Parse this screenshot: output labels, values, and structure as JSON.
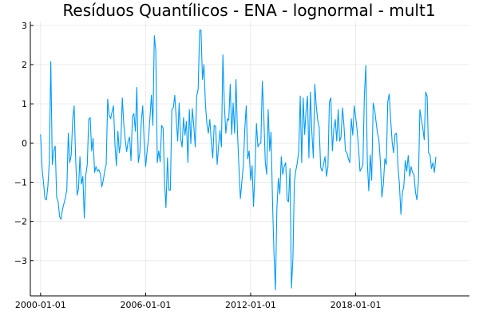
{
  "colors": {
    "series": "#009AFA",
    "background": "#FFFFFF",
    "axis": "#000000"
  },
  "chart_data": {
    "type": "line",
    "title": "Resíduos Quantílicos - ENA - lognormal - mult1",
    "xlabel": "",
    "ylabel": "",
    "grid": true,
    "legend": "none",
    "x_axis": {
      "type": "date",
      "start": "2000-01-01",
      "step": "1 month",
      "range": [
        "1999-06-01",
        "2024-07-01"
      ],
      "ticks": [
        "2000-01-01",
        "2006-01-01",
        "2012-01-01",
        "2018-01-01"
      ]
    },
    "y_axis": {
      "range": [
        -3.9,
        3.1
      ],
      "ticks": [
        -3,
        -2,
        -1,
        0,
        1,
        2,
        3
      ],
      "tick_labels": [
        "−3",
        "−2",
        "−1",
        "0",
        "1",
        "2",
        "3"
      ]
    },
    "series": [
      {
        "values": [
          0.22,
          -0.65,
          -1.0,
          -1.42,
          -1.45,
          -1.1,
          -0.48,
          2.08,
          -0.55,
          -0.2,
          -0.08,
          -1.38,
          -1.5,
          -1.88,
          -1.95,
          -1.7,
          -1.55,
          -1.4,
          -1.2,
          0.25,
          -0.5,
          -0.3,
          0.6,
          0.95,
          -0.38,
          -1.33,
          -1.18,
          -0.35,
          -1.05,
          -0.85,
          -1.92,
          -0.82,
          -0.55,
          0.6,
          0.65,
          -0.2,
          0.12,
          -0.75,
          -0.6,
          -0.72,
          -0.68,
          -0.78,
          -1.12,
          -0.95,
          -0.7,
          -0.55,
          1.12,
          0.72,
          0.62,
          0.8,
          0.95,
          -0.05,
          -0.58,
          0.3,
          -0.25,
          0.02,
          1.15,
          0.5,
          0.08,
          -0.22,
          0.05,
          0.15,
          -0.45,
          0.68,
          0.75,
          0.3,
          1.42,
          -0.5,
          -0.25,
          0.52,
          0.95,
          0.05,
          -0.6,
          -0.2,
          0.1,
          0.65,
          1.22,
          0.45,
          2.74,
          2.35,
          -0.5,
          -0.2,
          -0.48,
          0.45,
          0.38,
          -1.05,
          -1.65,
          -0.38,
          -1.2,
          -1.2,
          0.85,
          0.9,
          1.22,
          0.62,
          0.05,
          1.02,
          0.12,
          -0.1,
          0.65,
          0.2,
          0.55,
          -0.5,
          0.85,
          -0.02,
          0.88,
          0.45,
          -0.1,
          1.2,
          1.38,
          2.88,
          2.88,
          1.62,
          2.0,
          1.0,
          0.5,
          0.25,
          0.6,
          0.05,
          -0.38,
          0.45,
          0.42,
          -0.55,
          -0.1,
          0.32,
          -0.1,
          2.25,
          1.0,
          0.25,
          0.62,
          0.58,
          1.5,
          0.22,
          1.02,
          0.25,
          1.62,
          0.28,
          -0.6,
          -1.42,
          -1.0,
          -0.58,
          0.35,
          0.95,
          -0.4,
          -0.2,
          -0.95,
          -0.58,
          -1.62,
          -0.7,
          0.5,
          -0.1,
          -0.02,
          0.0,
          1.58,
          0.7,
          -0.48,
          -0.8,
          0.85,
          -0.2,
          0.28,
          -1.45,
          -2.8,
          -3.75,
          -1.7,
          -0.9,
          -1.3,
          -0.35,
          -0.8,
          -0.6,
          -0.5,
          -1.45,
          -1.5,
          -0.65,
          -3.7,
          -2.95,
          -1.0,
          -0.7,
          -0.5,
          -0.2,
          1.2,
          -0.5,
          1.15,
          0.22,
          0.8,
          1.2,
          -0.38,
          1.3,
          0.28,
          -0.38,
          1.5,
          0.95,
          0.58,
          0.4,
          -0.62,
          -0.72,
          -0.55,
          -0.35,
          -0.85,
          -0.6,
          1.05,
          1.15,
          -0.2,
          0.35,
          0.6,
          0.05,
          0.85,
          0.05,
          0.15,
          0.9,
          0.45,
          -0.2,
          -0.25,
          -0.4,
          -0.5,
          0.62,
          0.2,
          0.95,
          0.65,
          0.32,
          -0.12,
          -0.72,
          -0.65,
          -0.55,
          1.22,
          1.98,
          -0.5,
          -1.22,
          -0.3,
          -0.95,
          1.02,
          0.85,
          0.55,
          0.25,
          0.08,
          -0.5,
          -1.38,
          -1.05,
          -0.4,
          -0.55,
          1.05,
          1.25,
          0.6,
          0.02,
          -0.25,
          0.22,
          0.25,
          -0.58,
          -1.05,
          -1.82,
          -1.28,
          -1.1,
          -0.45,
          -0.72,
          -0.32,
          -0.85,
          -0.6,
          -0.75,
          -0.8,
          -1.25,
          -1.45,
          -1.0,
          0.85,
          0.62,
          0.38,
          0.08,
          1.3,
          1.18,
          -0.25,
          -0.3,
          -0.65,
          -0.5,
          -0.75,
          -0.35
        ]
      }
    ]
  }
}
